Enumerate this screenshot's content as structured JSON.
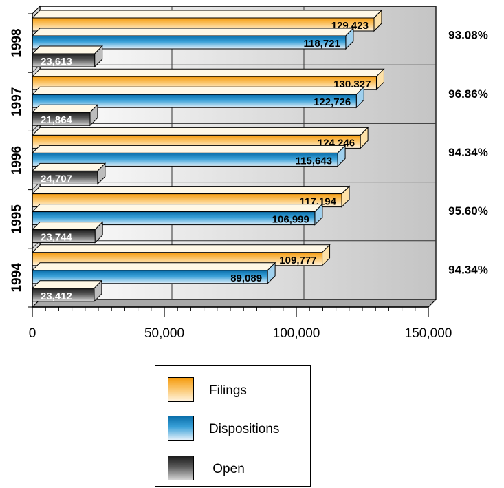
{
  "chart_data": {
    "type": "bar",
    "orientation": "horizontal",
    "categories": [
      "1998",
      "1997",
      "1996",
      "1995",
      "1994"
    ],
    "series": [
      {
        "name": "Filings",
        "values": [
          129423,
          130327,
          124246,
          117194,
          109777
        ],
        "labels": [
          "129,423",
          "130,327",
          "124,246",
          "117,194",
          "109,777"
        ],
        "color": "#f5a623"
      },
      {
        "name": "Dispositions",
        "values": [
          118721,
          122726,
          115643,
          106999,
          89089
        ],
        "labels": [
          "118,721",
          "122,726",
          "115,643",
          "106,999",
          "89,089"
        ],
        "color": "#1a8fc9"
      },
      {
        "name": "Open",
        "values": [
          23613,
          21864,
          24707,
          23744,
          23412
        ],
        "labels": [
          "23,613",
          "21,864",
          "24,707",
          "23,744",
          "23,412"
        ],
        "color": "#444444"
      }
    ],
    "right_annotations": [
      "93.08%",
      "96.86%",
      "94.34%",
      "95.60%",
      "94.34%"
    ],
    "xlim": [
      0,
      150000
    ],
    "x_ticks": [
      {
        "value": 0,
        "label": "0"
      },
      {
        "value": 50000,
        "label": "50,000"
      },
      {
        "value": 100000,
        "label": "100,000"
      },
      {
        "value": 150000,
        "label": "150,000"
      }
    ],
    "grid": true,
    "legend_position": "bottom"
  },
  "legend": {
    "items": [
      {
        "label": "Filings",
        "color": "#f5a623"
      },
      {
        "label": "Dispositions",
        "color": "#1a8fc9"
      },
      {
        "label": " Open",
        "color": "#444444"
      }
    ]
  }
}
